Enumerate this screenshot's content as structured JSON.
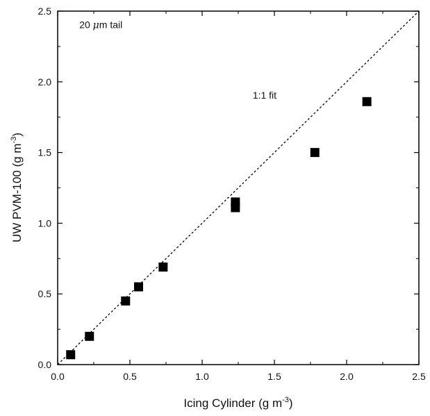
{
  "chart_data": {
    "type": "scatter",
    "title": "",
    "xlabel": "Icing Cylinder (g m",
    "xlabel_sup": "-3",
    "xlabel_close": ")",
    "ylabel": "UW PVM-100 (g m",
    "ylabel_sup": "-3",
    "ylabel_close": ")",
    "xlim": [
      0.0,
      2.5
    ],
    "ylim": [
      0.0,
      2.5
    ],
    "xticks": [
      0.0,
      0.5,
      1.0,
      1.5,
      2.0,
      2.5
    ],
    "yticks": [
      0.0,
      0.5,
      1.0,
      1.5,
      2.0,
      2.5
    ],
    "xtick_labels": [
      "0.0",
      "0.5",
      "1.0",
      "1.5",
      "2.0",
      "2.5"
    ],
    "ytick_labels": [
      "0.0",
      "0.5",
      "1.0",
      "1.5",
      "2.0",
      "2.5"
    ],
    "grid": false,
    "series": [
      {
        "marker": "square",
        "color": "#000000",
        "x": [
          0.09,
          0.22,
          0.47,
          0.56,
          0.73,
          1.23,
          1.23,
          1.78,
          2.14
        ],
        "y": [
          0.07,
          0.2,
          0.45,
          0.55,
          0.69,
          1.11,
          1.15,
          1.5,
          1.86
        ]
      }
    ],
    "reference_line": {
      "style": "dashed",
      "from": [
        0.0,
        0.0
      ],
      "to": [
        2.5,
        2.5
      ],
      "label": "1:1 fit",
      "label_at": [
        1.35,
        1.88
      ]
    },
    "annotations": [
      {
        "text_pre": "20 ",
        "text_mu": "μ",
        "text_post": "m tail",
        "at": [
          0.15,
          2.38
        ]
      }
    ]
  }
}
